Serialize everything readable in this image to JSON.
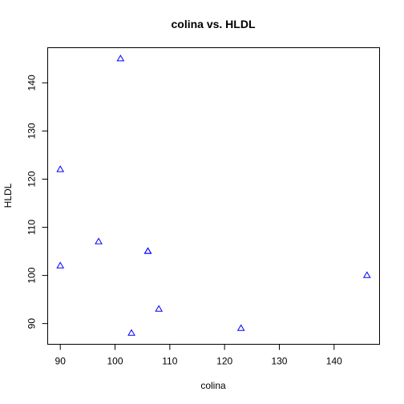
{
  "chart_data": {
    "type": "scatter",
    "title": "colina vs. HLDL",
    "xlabel": "colina",
    "ylabel": "HLDL",
    "xlim": [
      87.7,
      148.3
    ],
    "ylim": [
      85.7,
      147.3
    ],
    "xticks": [
      90,
      100,
      110,
      120,
      130,
      140
    ],
    "yticks": [
      90,
      100,
      110,
      120,
      130,
      140
    ],
    "grid": false,
    "marker": "triangle",
    "color": "#0000ff",
    "points": [
      {
        "x": 101,
        "y": 145
      },
      {
        "x": 90,
        "y": 122
      },
      {
        "x": 97,
        "y": 107
      },
      {
        "x": 90,
        "y": 102
      },
      {
        "x": 106,
        "y": 105
      },
      {
        "x": 106,
        "y": 105
      },
      {
        "x": 146,
        "y": 100
      },
      {
        "x": 108,
        "y": 93
      },
      {
        "x": 103,
        "y": 88
      },
      {
        "x": 123,
        "y": 89
      }
    ]
  }
}
